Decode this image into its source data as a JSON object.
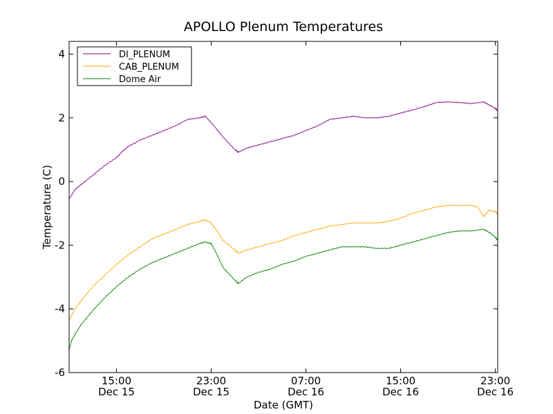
{
  "chart_data": {
    "type": "line",
    "title": "APOLLO Plenum Temperatures",
    "xlabel": "Date (GMT)",
    "ylabel": "Temperature (C)",
    "xlim": [
      11.0,
      47.2
    ],
    "ylim": [
      -6,
      4.4
    ],
    "x_unit": "hours since Dec 15 00:00 GMT",
    "x_ticks": [
      {
        "value": 15,
        "label_line1": "15:00",
        "label_line2": "Dec 15"
      },
      {
        "value": 23,
        "label_line1": "23:00",
        "label_line2": "Dec 15"
      },
      {
        "value": 31,
        "label_line1": "07:00",
        "label_line2": "Dec 16"
      },
      {
        "value": 39,
        "label_line1": "15:00",
        "label_line2": "Dec 16"
      },
      {
        "value": 47,
        "label_line1": "23:00",
        "label_line2": "Dec 16"
      }
    ],
    "y_ticks": [
      {
        "value": 4,
        "label": "4"
      },
      {
        "value": 2,
        "label": "2"
      },
      {
        "value": 0,
        "label": "0"
      },
      {
        "value": -2,
        "label": "-2"
      },
      {
        "value": -4,
        "label": "-4"
      },
      {
        "value": -6,
        "label": "-6"
      }
    ],
    "legend_position": "top-left",
    "series": [
      {
        "name": "DI_PLENUM",
        "color": "#800080",
        "x": [
          11.0,
          11.5,
          12.0,
          13.0,
          14.0,
          15.0,
          15.5,
          16.0,
          17.0,
          18.0,
          19.0,
          20.0,
          21.0,
          22.0,
          22.5,
          23.0,
          24.0,
          25.0,
          25.3,
          26.0,
          27.0,
          28.0,
          29.0,
          30.0,
          31.0,
          32.0,
          33.0,
          34.0,
          35.0,
          36.0,
          37.0,
          38.0,
          39.0,
          40.0,
          41.0,
          42.0,
          43.0,
          44.0,
          45.0,
          46.0,
          46.5,
          47.0,
          47.2
        ],
        "y": [
          -0.55,
          -0.25,
          -0.1,
          0.2,
          0.5,
          0.75,
          0.95,
          1.1,
          1.3,
          1.45,
          1.6,
          1.75,
          1.95,
          2.0,
          2.05,
          1.85,
          1.4,
          1.0,
          0.92,
          1.05,
          1.15,
          1.25,
          1.35,
          1.45,
          1.6,
          1.75,
          1.95,
          2.0,
          2.05,
          2.0,
          2.0,
          2.05,
          2.15,
          2.25,
          2.35,
          2.48,
          2.5,
          2.48,
          2.45,
          2.5,
          2.4,
          2.3,
          2.22
        ]
      },
      {
        "name": "CAB_PLENUM",
        "color": "#ffa500",
        "x": [
          11.0,
          11.5,
          12.0,
          13.0,
          14.0,
          15.0,
          16.0,
          17.0,
          18.0,
          19.0,
          20.0,
          21.0,
          22.0,
          22.5,
          23.0,
          23.5,
          24.0,
          25.0,
          25.3,
          26.0,
          27.0,
          28.0,
          29.0,
          30.0,
          31.0,
          32.0,
          33.0,
          34.0,
          35.0,
          36.0,
          37.0,
          38.0,
          39.0,
          40.0,
          41.0,
          42.0,
          43.0,
          44.0,
          45.0,
          45.5,
          46.0,
          46.5,
          47.0,
          47.2
        ],
        "y": [
          -4.35,
          -4.0,
          -3.75,
          -3.3,
          -2.95,
          -2.6,
          -2.3,
          -2.05,
          -1.8,
          -1.65,
          -1.5,
          -1.35,
          -1.25,
          -1.2,
          -1.3,
          -1.55,
          -1.85,
          -2.15,
          -2.25,
          -2.15,
          -2.05,
          -1.95,
          -1.85,
          -1.7,
          -1.6,
          -1.5,
          -1.4,
          -1.35,
          -1.3,
          -1.3,
          -1.3,
          -1.25,
          -1.15,
          -1.0,
          -0.9,
          -0.8,
          -0.75,
          -0.75,
          -0.75,
          -0.8,
          -1.1,
          -0.9,
          -0.95,
          -1.0
        ]
      },
      {
        "name": "Dome Air",
        "color": "#008000",
        "x": [
          11.0,
          11.2,
          11.5,
          12.0,
          13.0,
          14.0,
          15.0,
          16.0,
          17.0,
          18.0,
          19.0,
          20.0,
          21.0,
          22.0,
          22.5,
          23.0,
          23.5,
          24.0,
          25.0,
          25.3,
          26.0,
          27.0,
          28.0,
          29.0,
          30.0,
          31.0,
          32.0,
          33.0,
          34.0,
          35.0,
          36.0,
          37.0,
          38.0,
          39.0,
          40.0,
          41.0,
          42.0,
          43.0,
          44.0,
          45.0,
          46.0,
          46.5,
          47.0,
          47.2
        ],
        "y": [
          -5.3,
          -5.0,
          -4.8,
          -4.5,
          -4.05,
          -3.65,
          -3.3,
          -3.0,
          -2.75,
          -2.55,
          -2.4,
          -2.25,
          -2.1,
          -1.95,
          -1.9,
          -1.95,
          -2.3,
          -2.7,
          -3.1,
          -3.2,
          -3.0,
          -2.85,
          -2.75,
          -2.6,
          -2.5,
          -2.35,
          -2.25,
          -2.15,
          -2.05,
          -2.05,
          -2.05,
          -2.1,
          -2.1,
          -2.0,
          -1.9,
          -1.8,
          -1.7,
          -1.6,
          -1.55,
          -1.55,
          -1.5,
          -1.6,
          -1.75,
          -1.85
        ]
      }
    ]
  }
}
